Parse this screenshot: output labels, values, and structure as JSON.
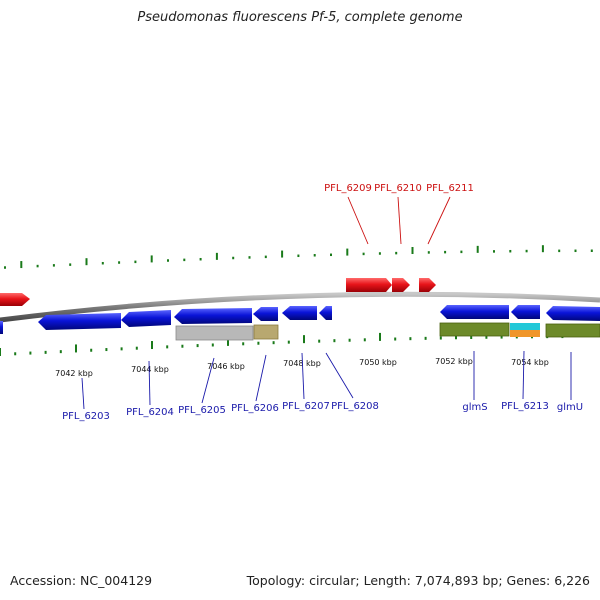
{
  "header": {
    "title": "Pseudomonas fluorescens Pf-5, complete genome"
  },
  "footer": {
    "accession": "Accession: NC_004129",
    "topology": "Topology: circular; Length: 7,074,893 bp; Genes: 6,226"
  },
  "colors": {
    "forward_gene": "#e8141a",
    "reverse_gene": "#0a14d8",
    "backbone": "#8a8a8a",
    "tick": "#1a7a1a",
    "forward_label": "#cc1111",
    "reverse_label": "#1a1aaa",
    "feature_grey": "#b8b8b8",
    "feature_olive": "#b8a870",
    "feature_green": "#6d8a2a",
    "feature_cyan": "#22c8d8",
    "feature_orange": "#f0962a"
  },
  "scale_labels": [
    "7042 kbp",
    "7044 kbp",
    "7046 kbp",
    "7048 kbp",
    "7050 kbp",
    "7052 kbp",
    "7054 kbp"
  ],
  "forward_gene_labels": [
    "PFL_6209",
    "PFL_6210",
    "PFL_6211"
  ],
  "reverse_gene_labels": [
    "PFL_6203",
    "PFL_6204",
    "PFL_6205",
    "PFL_6206",
    "PFL_6207",
    "PFL_6208",
    "glmS",
    "PFL_6213",
    "glmU"
  ]
}
